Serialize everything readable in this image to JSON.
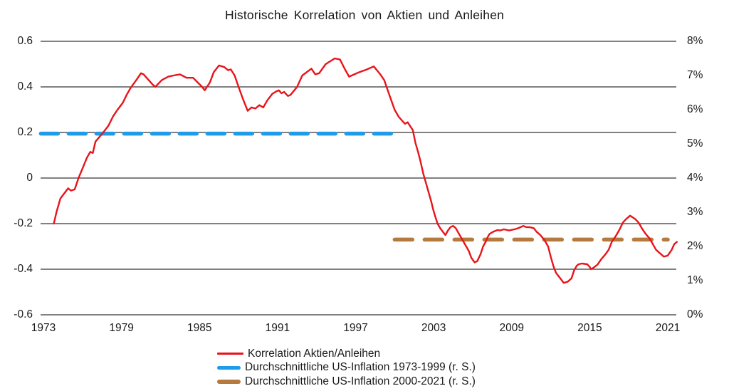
{
  "title": "Historische Korrelation von Aktien und Anleihen",
  "colors": {
    "correlation_red": "#e8141a",
    "inflation_blue": "#1e9be9",
    "inflation_brown": "#b57a3d",
    "grid": "#000000",
    "text": "#1a1a1a"
  },
  "chart_data": {
    "type": "line",
    "title": "Historische Korrelation von Aktien und Anleihen",
    "grid": "horizontal-on",
    "legend_position": "bottom",
    "x_axis": {
      "min": 1973,
      "max": 2021,
      "ticks": [
        1973,
        1979,
        1985,
        1991,
        1997,
        2003,
        2009,
        2015,
        2021
      ]
    },
    "y_axis_left": {
      "range": [
        -0.6,
        0.6
      ],
      "ticks": [
        {
          "label": "0.6",
          "value": 0.6
        },
        {
          "label": "0.4",
          "value": 0.4
        },
        {
          "label": "0.2",
          "value": 0.2
        },
        {
          "label": "0",
          "value": 0
        },
        {
          "label": "-0.2",
          "value": -0.2
        },
        {
          "label": "-0.4",
          "value": -0.4
        },
        {
          "label": "-0.6",
          "value": -0.6
        }
      ]
    },
    "y_axis_right": {
      "range": [
        0,
        8
      ],
      "ticks": [
        {
          "label": "8%",
          "value": 8
        },
        {
          "label": "7%",
          "value": 7
        },
        {
          "label": "6%",
          "value": 6
        },
        {
          "label": "5%",
          "value": 5
        },
        {
          "label": "4%",
          "value": 4
        },
        {
          "label": "3%",
          "value": 3
        },
        {
          "label": "2%",
          "value": 2
        },
        {
          "label": "1%",
          "value": 1
        },
        {
          "label": "0%",
          "value": 0
        }
      ]
    },
    "series": [
      {
        "name": "Korrelation Aktien/Anleihen",
        "type": "line",
        "axis": "left",
        "color": "#e8141a",
        "points": [
          [
            1973.8,
            -0.2
          ],
          [
            1974.0,
            -0.15
          ],
          [
            1974.3,
            -0.09
          ],
          [
            1974.5,
            -0.075
          ],
          [
            1974.9,
            -0.045
          ],
          [
            1975.1,
            -0.055
          ],
          [
            1975.4,
            -0.05
          ],
          [
            1975.7,
            0.0
          ],
          [
            1976.1,
            0.055
          ],
          [
            1976.35,
            0.09
          ],
          [
            1976.6,
            0.115
          ],
          [
            1976.8,
            0.11
          ],
          [
            1977.0,
            0.16
          ],
          [
            1977.6,
            0.2
          ],
          [
            1978.0,
            0.23
          ],
          [
            1978.35,
            0.27
          ],
          [
            1978.7,
            0.3
          ],
          [
            1979.1,
            0.33
          ],
          [
            1979.4,
            0.365
          ],
          [
            1979.7,
            0.395
          ],
          [
            1980.2,
            0.435
          ],
          [
            1980.5,
            0.46
          ],
          [
            1980.7,
            0.455
          ],
          [
            1981.4,
            0.41
          ],
          [
            1981.6,
            0.4
          ],
          [
            1982.1,
            0.43
          ],
          [
            1982.6,
            0.445
          ],
          [
            1983.0,
            0.45
          ],
          [
            1983.5,
            0.455
          ],
          [
            1984.0,
            0.44
          ],
          [
            1984.5,
            0.44
          ],
          [
            1985.2,
            0.4
          ],
          [
            1985.4,
            0.385
          ],
          [
            1985.8,
            0.42
          ],
          [
            1986.1,
            0.465
          ],
          [
            1986.5,
            0.494
          ],
          [
            1986.9,
            0.487
          ],
          [
            1987.2,
            0.473
          ],
          [
            1987.4,
            0.477
          ],
          [
            1987.7,
            0.45
          ],
          [
            1988.0,
            0.4
          ],
          [
            1988.35,
            0.345
          ],
          [
            1988.7,
            0.295
          ],
          [
            1989.0,
            0.31
          ],
          [
            1989.3,
            0.305
          ],
          [
            1989.6,
            0.32
          ],
          [
            1989.9,
            0.31
          ],
          [
            1990.2,
            0.34
          ],
          [
            1990.6,
            0.37
          ],
          [
            1990.9,
            0.38
          ],
          [
            1991.1,
            0.385
          ],
          [
            1991.3,
            0.372
          ],
          [
            1991.5,
            0.378
          ],
          [
            1991.8,
            0.36
          ],
          [
            1992.0,
            0.365
          ],
          [
            1992.5,
            0.4
          ],
          [
            1992.9,
            0.45
          ],
          [
            1993.6,
            0.48
          ],
          [
            1993.9,
            0.455
          ],
          [
            1994.2,
            0.46
          ],
          [
            1994.7,
            0.5
          ],
          [
            1995.4,
            0.525
          ],
          [
            1995.8,
            0.52
          ],
          [
            1996.2,
            0.475
          ],
          [
            1996.5,
            0.445
          ],
          [
            1996.9,
            0.455
          ],
          [
            1997.3,
            0.465
          ],
          [
            1997.8,
            0.475
          ],
          [
            1998.4,
            0.49
          ],
          [
            1998.9,
            0.455
          ],
          [
            1999.2,
            0.43
          ],
          [
            1999.5,
            0.38
          ],
          [
            1999.75,
            0.34
          ],
          [
            2000.0,
            0.3
          ],
          [
            2000.3,
            0.27
          ],
          [
            2000.6,
            0.25
          ],
          [
            2000.8,
            0.238
          ],
          [
            2001.0,
            0.245
          ],
          [
            2001.4,
            0.21
          ],
          [
            2001.6,
            0.155
          ],
          [
            2001.8,
            0.115
          ],
          [
            2002.0,
            0.07
          ],
          [
            2002.2,
            0.02
          ],
          [
            2002.4,
            -0.02
          ],
          [
            2002.6,
            -0.06
          ],
          [
            2002.8,
            -0.1
          ],
          [
            2002.95,
            -0.135
          ],
          [
            2003.1,
            -0.165
          ],
          [
            2003.3,
            -0.2
          ],
          [
            2003.5,
            -0.22
          ],
          [
            2003.7,
            -0.235
          ],
          [
            2003.9,
            -0.25
          ],
          [
            2004.1,
            -0.23
          ],
          [
            2004.3,
            -0.215
          ],
          [
            2004.5,
            -0.21
          ],
          [
            2004.7,
            -0.22
          ],
          [
            2004.85,
            -0.235
          ],
          [
            2005.1,
            -0.26
          ],
          [
            2005.4,
            -0.29
          ],
          [
            2005.7,
            -0.32
          ],
          [
            2005.9,
            -0.35
          ],
          [
            2006.15,
            -0.37
          ],
          [
            2006.35,
            -0.365
          ],
          [
            2006.6,
            -0.335
          ],
          [
            2006.8,
            -0.3
          ],
          [
            2007.0,
            -0.28
          ],
          [
            2007.15,
            -0.26
          ],
          [
            2007.3,
            -0.245
          ],
          [
            2007.6,
            -0.235
          ],
          [
            2007.9,
            -0.228
          ],
          [
            2008.1,
            -0.23
          ],
          [
            2008.4,
            -0.225
          ],
          [
            2008.8,
            -0.23
          ],
          [
            2009.2,
            -0.225
          ],
          [
            2009.5,
            -0.22
          ],
          [
            2009.9,
            -0.21
          ],
          [
            2010.1,
            -0.215
          ],
          [
            2010.4,
            -0.216
          ],
          [
            2010.7,
            -0.22
          ],
          [
            2010.9,
            -0.235
          ],
          [
            2011.2,
            -0.25
          ],
          [
            2011.5,
            -0.27
          ],
          [
            2011.8,
            -0.3
          ],
          [
            2012.0,
            -0.345
          ],
          [
            2012.2,
            -0.385
          ],
          [
            2012.4,
            -0.415
          ],
          [
            2012.6,
            -0.43
          ],
          [
            2012.8,
            -0.445
          ],
          [
            2013.0,
            -0.46
          ],
          [
            2013.3,
            -0.455
          ],
          [
            2013.6,
            -0.44
          ],
          [
            2013.8,
            -0.405
          ],
          [
            2014.0,
            -0.385
          ],
          [
            2014.15,
            -0.378
          ],
          [
            2014.4,
            -0.375
          ],
          [
            2014.8,
            -0.378
          ],
          [
            2015.0,
            -0.39
          ],
          [
            2015.1,
            -0.4
          ],
          [
            2015.25,
            -0.395
          ],
          [
            2015.6,
            -0.38
          ],
          [
            2015.9,
            -0.355
          ],
          [
            2016.2,
            -0.335
          ],
          [
            2016.45,
            -0.315
          ],
          [
            2016.7,
            -0.28
          ],
          [
            2017.0,
            -0.255
          ],
          [
            2017.3,
            -0.225
          ],
          [
            2017.55,
            -0.195
          ],
          [
            2017.8,
            -0.18
          ],
          [
            2018.1,
            -0.165
          ],
          [
            2018.5,
            -0.18
          ],
          [
            2018.75,
            -0.195
          ],
          [
            2019.0,
            -0.22
          ],
          [
            2019.3,
            -0.245
          ],
          [
            2019.6,
            -0.265
          ],
          [
            2019.85,
            -0.29
          ],
          [
            2020.1,
            -0.315
          ],
          [
            2020.4,
            -0.33
          ],
          [
            2020.7,
            -0.345
          ],
          [
            2021.0,
            -0.34
          ],
          [
            2021.3,
            -0.315
          ],
          [
            2021.5,
            -0.29
          ],
          [
            2021.7,
            -0.28
          ]
        ]
      },
      {
        "name": "Durchschnittliche US-Inflation 1973-1999 (r. S.)",
        "type": "hline-dashed",
        "axis": "right",
        "color": "#1e9be9",
        "value": 5.3,
        "x_start": 1972.8,
        "x_end": 2000.0
      },
      {
        "name": "Durchschnittliche US-Inflation 2000-2021 (r. S.)",
        "type": "hline-dashed",
        "axis": "right",
        "color": "#b57a3d",
        "value": 2.2,
        "x_start": 2000.0,
        "x_end": 2021.0
      }
    ]
  },
  "legend": {
    "items": [
      {
        "label": "Korrelation Aktien/Anleihen",
        "swatch": "thin-red-line"
      },
      {
        "label": "Durchschnittliche US-Inflation 1973-1999 (r. S.)",
        "swatch": "thick-blue-dash"
      },
      {
        "label": "Durchschnittliche US-Inflation 2000-2021 (r. S.)",
        "swatch": "thick-brown-dash"
      }
    ]
  }
}
